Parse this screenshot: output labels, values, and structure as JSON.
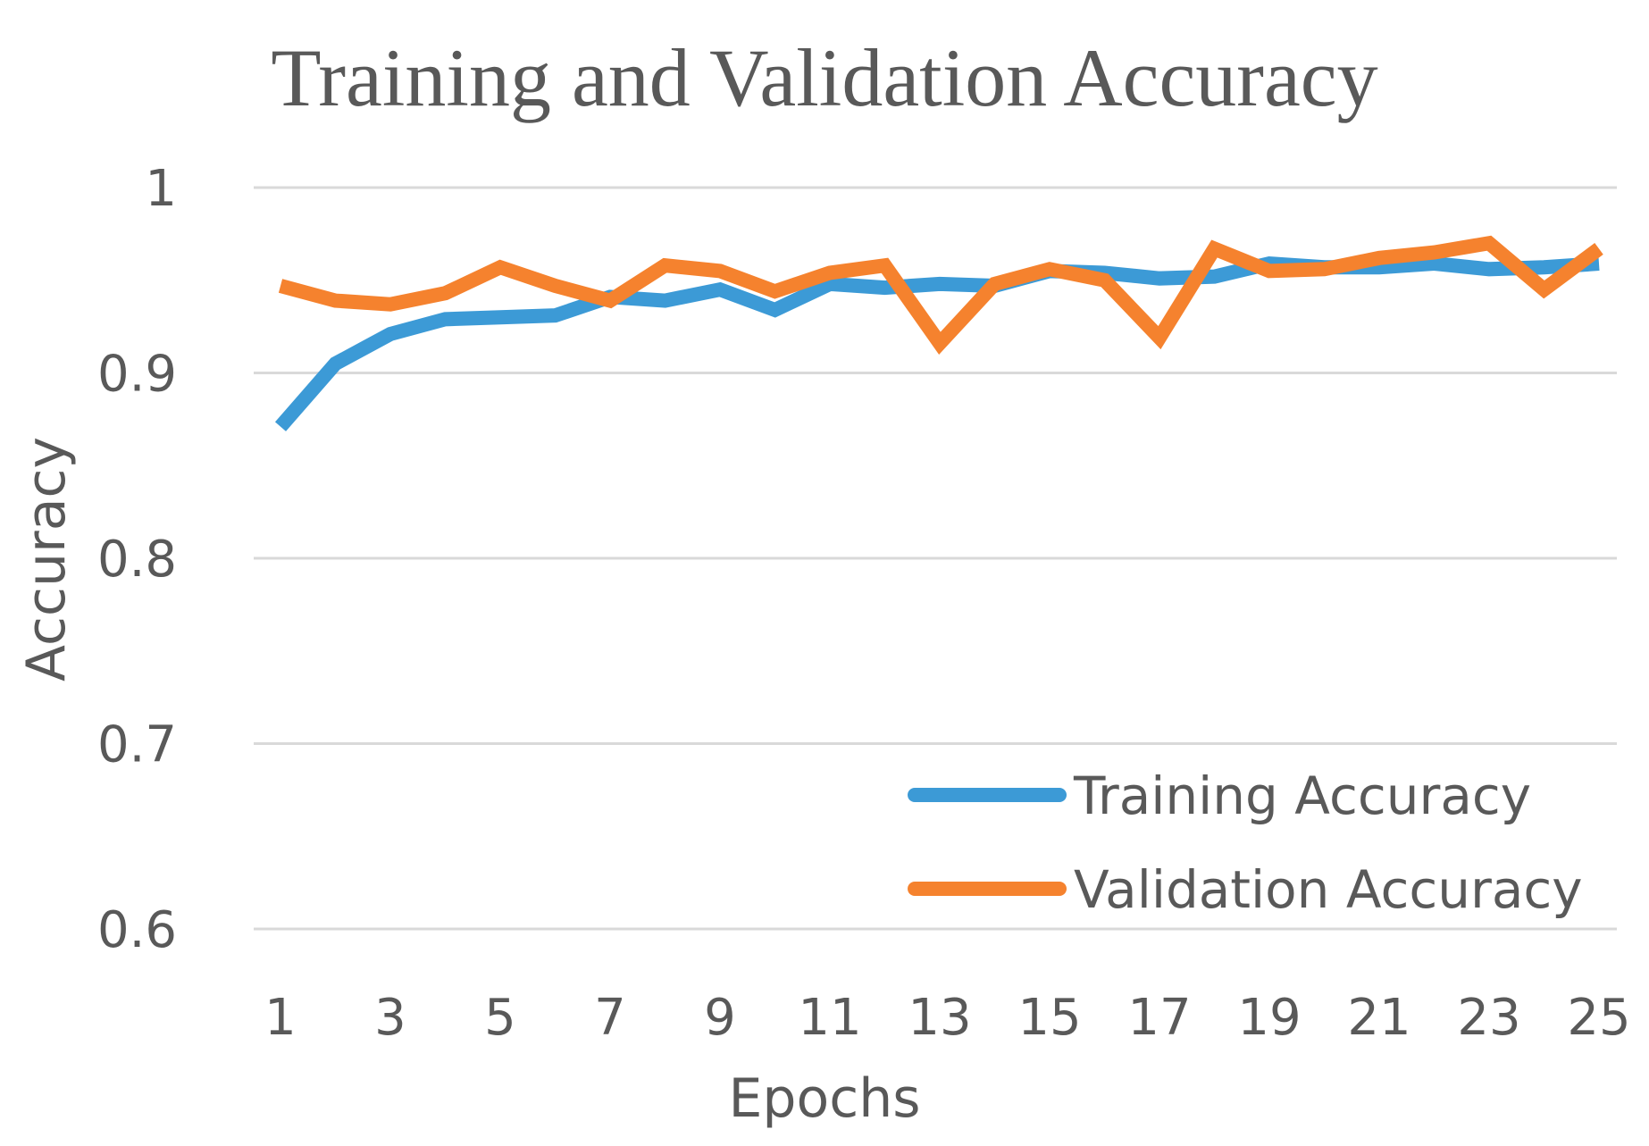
{
  "chart_data": {
    "type": "line",
    "title": "Training and Validation Accuracy",
    "xlabel": "Epochs",
    "ylabel": "Accuracy",
    "x": [
      1,
      2,
      3,
      4,
      5,
      6,
      7,
      8,
      9,
      10,
      11,
      12,
      13,
      14,
      15,
      16,
      17,
      18,
      19,
      20,
      21,
      22,
      23,
      24,
      25
    ],
    "x_tick_labels": [
      "1",
      "3",
      "5",
      "7",
      "9",
      "11",
      "13",
      "15",
      "17",
      "19",
      "21",
      "23",
      "25"
    ],
    "y_ticks": [
      0.6,
      0.7,
      0.8,
      0.9,
      1.0
    ],
    "y_tick_labels": [
      "0.6",
      "0.7",
      "0.8",
      "0.9",
      "1"
    ],
    "ylim": [
      0.6,
      1.0
    ],
    "grid": true,
    "legend_position": "bottom-right",
    "series": [
      {
        "name": "Training Accuracy",
        "color": "#3C9AD6",
        "values": [
          0.871,
          0.905,
          0.921,
          0.929,
          0.93,
          0.931,
          0.941,
          0.939,
          0.945,
          0.934,
          0.948,
          0.946,
          0.948,
          0.947,
          0.955,
          0.954,
          0.951,
          0.952,
          0.959,
          0.957,
          0.957,
          0.959,
          0.956,
          0.957,
          0.959
        ]
      },
      {
        "name": "Validation Accuracy",
        "color": "#F5822E",
        "values": [
          0.947,
          0.939,
          0.937,
          0.943,
          0.957,
          0.947,
          0.939,
          0.958,
          0.955,
          0.944,
          0.954,
          0.958,
          0.916,
          0.948,
          0.956,
          0.95,
          0.919,
          0.967,
          0.955,
          0.956,
          0.962,
          0.965,
          0.97,
          0.945,
          0.967
        ]
      }
    ]
  }
}
